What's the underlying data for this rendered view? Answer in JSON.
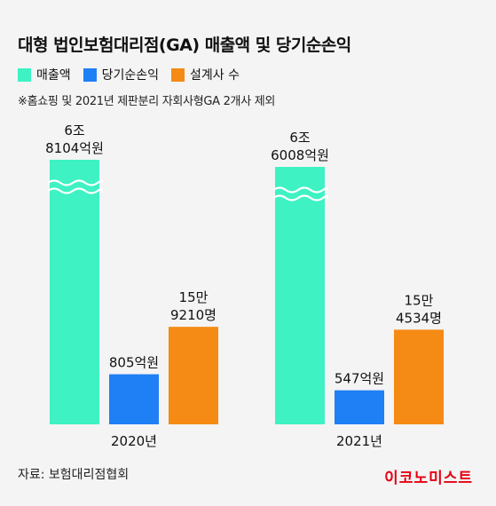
{
  "title": "대형 법인보험대리점(GA) 매출액 및 당기순손익",
  "legend": [
    {
      "label": "매출액",
      "color": "#3ef2c3"
    },
    {
      "label": "당기순손익",
      "color": "#1f7ff5"
    },
    {
      "label": "설계사 수",
      "color": "#f58a14"
    }
  ],
  "note": "※홈쇼핑 및 2021년 제판분리 자회사형GA 2개사 제외",
  "source": "자료: 보험대리점협회",
  "brand": "이코노미스트",
  "chart_data": {
    "type": "bar",
    "categories": [
      "2020년",
      "2021년"
    ],
    "series": [
      {
        "name": "매출액",
        "values": [
          6.8104,
          6.6008
        ],
        "unit": "조원",
        "labels": [
          "6조\n8104억원",
          "6조\n6008억원"
        ],
        "axis_break": true
      },
      {
        "name": "당기순손익",
        "values": [
          805,
          547
        ],
        "unit": "억원",
        "labels": [
          "805억원",
          "547억원"
        ]
      },
      {
        "name": "설계사 수",
        "values": [
          159210,
          154534
        ],
        "unit": "명",
        "labels": [
          "15만\n9210명",
          "15만\n4534명"
        ]
      }
    ]
  }
}
